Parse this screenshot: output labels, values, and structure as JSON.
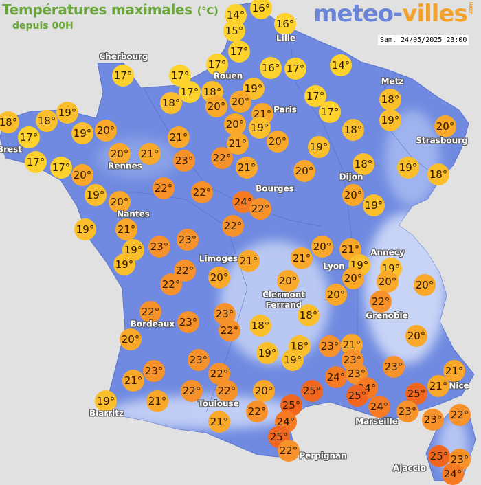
{
  "header": {
    "title": "Températures maximales",
    "unit": "(°C)",
    "subtitle": "depuis 00H",
    "logo_main": "meteo-",
    "logo_accent": "villes",
    "logo_suffix": ".com",
    "datetime": "Sam. 24/05/2025 23:00"
  },
  "colors": {
    "background": "#e1e1e1",
    "land": "#6f8ae0",
    "title": "#6aa63a",
    "scale": {
      "le17": "#fdd22c",
      "18-19": "#fcbf2c",
      "20-21": "#f9a82a",
      "22-23": "#f7912a",
      "24": "#f57a22",
      "25": "#f0661e"
    }
  },
  "cities": [
    "Cherbourg",
    "Lille",
    "Rouen",
    "Paris",
    "Metz",
    "Strasbourg",
    "Brest",
    "Rennes",
    "Dijon",
    "Bourges",
    "Nantes",
    "Limoges",
    "Lyon",
    "Annecy",
    "Clermont\nFerrand",
    "Grenoble",
    "Bordeaux",
    "Toulouse",
    "Marseille",
    "Nice",
    "Biarritz",
    "Perpignan",
    "Ajaccio"
  ],
  "temperatures": [
    14,
    16,
    15,
    16,
    17,
    17,
    16,
    17,
    14,
    17,
    17,
    17,
    18,
    18,
    19,
    20,
    20,
    21,
    19,
    20,
    20,
    17,
    17,
    18,
    19,
    18,
    20,
    18,
    17,
    18,
    19,
    19,
    20,
    17,
    17,
    20,
    20,
    21,
    21,
    23,
    22,
    21,
    21,
    19,
    20,
    18,
    19,
    18,
    19,
    20,
    22,
    22,
    24,
    22,
    20,
    19,
    19,
    21,
    19,
    19,
    23,
    23,
    22,
    20,
    21,
    19,
    20,
    19,
    20,
    20,
    22,
    22,
    21,
    21,
    20,
    20,
    20,
    22,
    22,
    20,
    23,
    23,
    22,
    18,
    18,
    18,
    19,
    19,
    23,
    21,
    23,
    23,
    20,
    23,
    23,
    21,
    22,
    24,
    23,
    24,
    21,
    21,
    19,
    21,
    22,
    22,
    20,
    25,
    25,
    25,
    24,
    25,
    23,
    22,
    23,
    21,
    22,
    24,
    25,
    22,
    25,
    23,
    24
  ]
}
